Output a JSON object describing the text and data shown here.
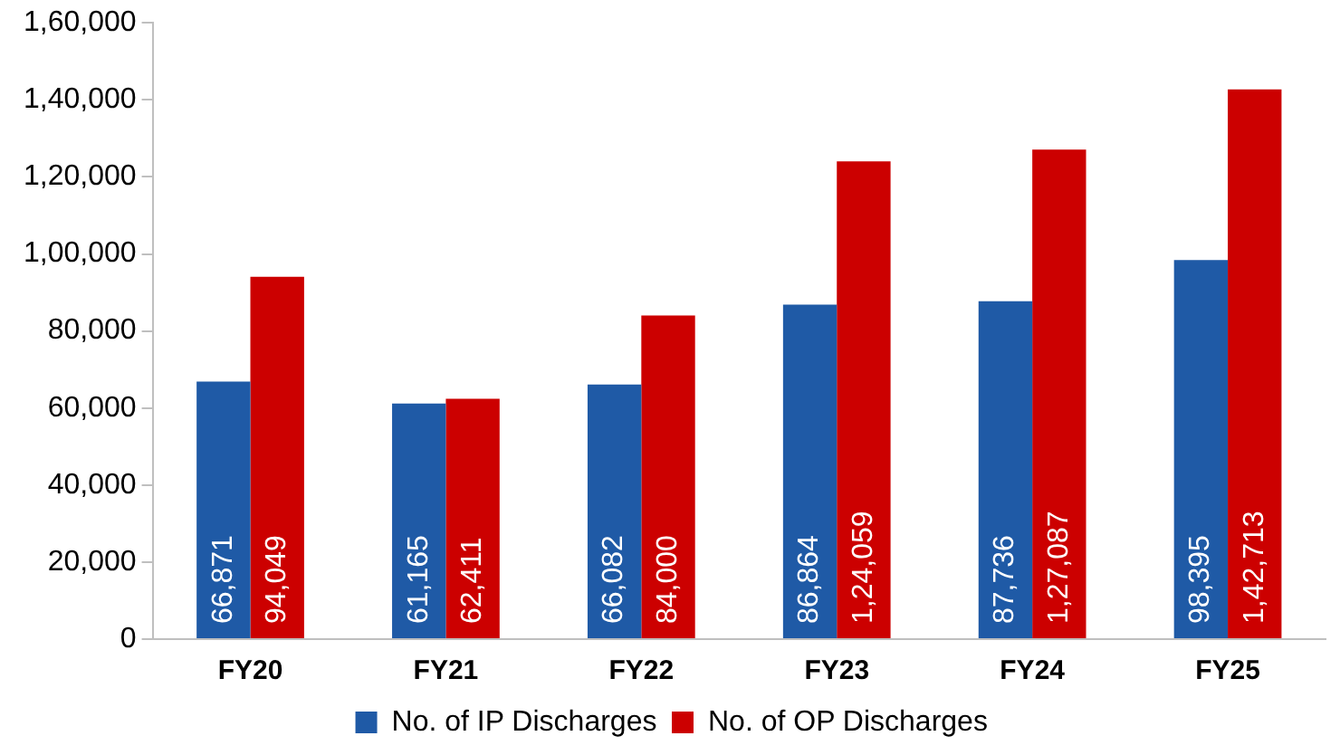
{
  "chart_data": {
    "type": "bar",
    "categories": [
      "FY20",
      "FY21",
      "FY22",
      "FY23",
      "FY24",
      "FY25"
    ],
    "series": [
      {
        "name": "No. of IP Discharges",
        "color": "#1f5aa6",
        "values": [
          66871,
          61165,
          66082,
          86864,
          87736,
          98395
        ],
        "value_labels": [
          "66,871",
          "61,165",
          "66,082",
          "86,864",
          "87,736",
          "98,395"
        ]
      },
      {
        "name": "No. of OP Discharges",
        "color": "#cc0000",
        "values": [
          94049,
          62411,
          84000,
          124059,
          127087,
          142713
        ],
        "value_labels": [
          "94,049",
          "62,411",
          "84,000",
          "1,24,059",
          "1,27,087",
          "1,42,713"
        ]
      }
    ],
    "ylim": [
      0,
      160000
    ],
    "yticks": [
      0,
      {
        "value": 20000,
        "label": "20,000"
      },
      {
        "value": 40000,
        "label": "40,000"
      },
      {
        "value": 60000,
        "label": "60,000"
      },
      {
        "value": 80000,
        "label": "80,000"
      },
      {
        "value": 100000,
        "label": "1,00,000"
      },
      {
        "value": 120000,
        "label": "1,20,000"
      },
      {
        "value": 140000,
        "label": "1,40,000"
      },
      {
        "value": 160000,
        "label": "1,60,000"
      }
    ],
    "grid": false,
    "legend": "bottom"
  }
}
